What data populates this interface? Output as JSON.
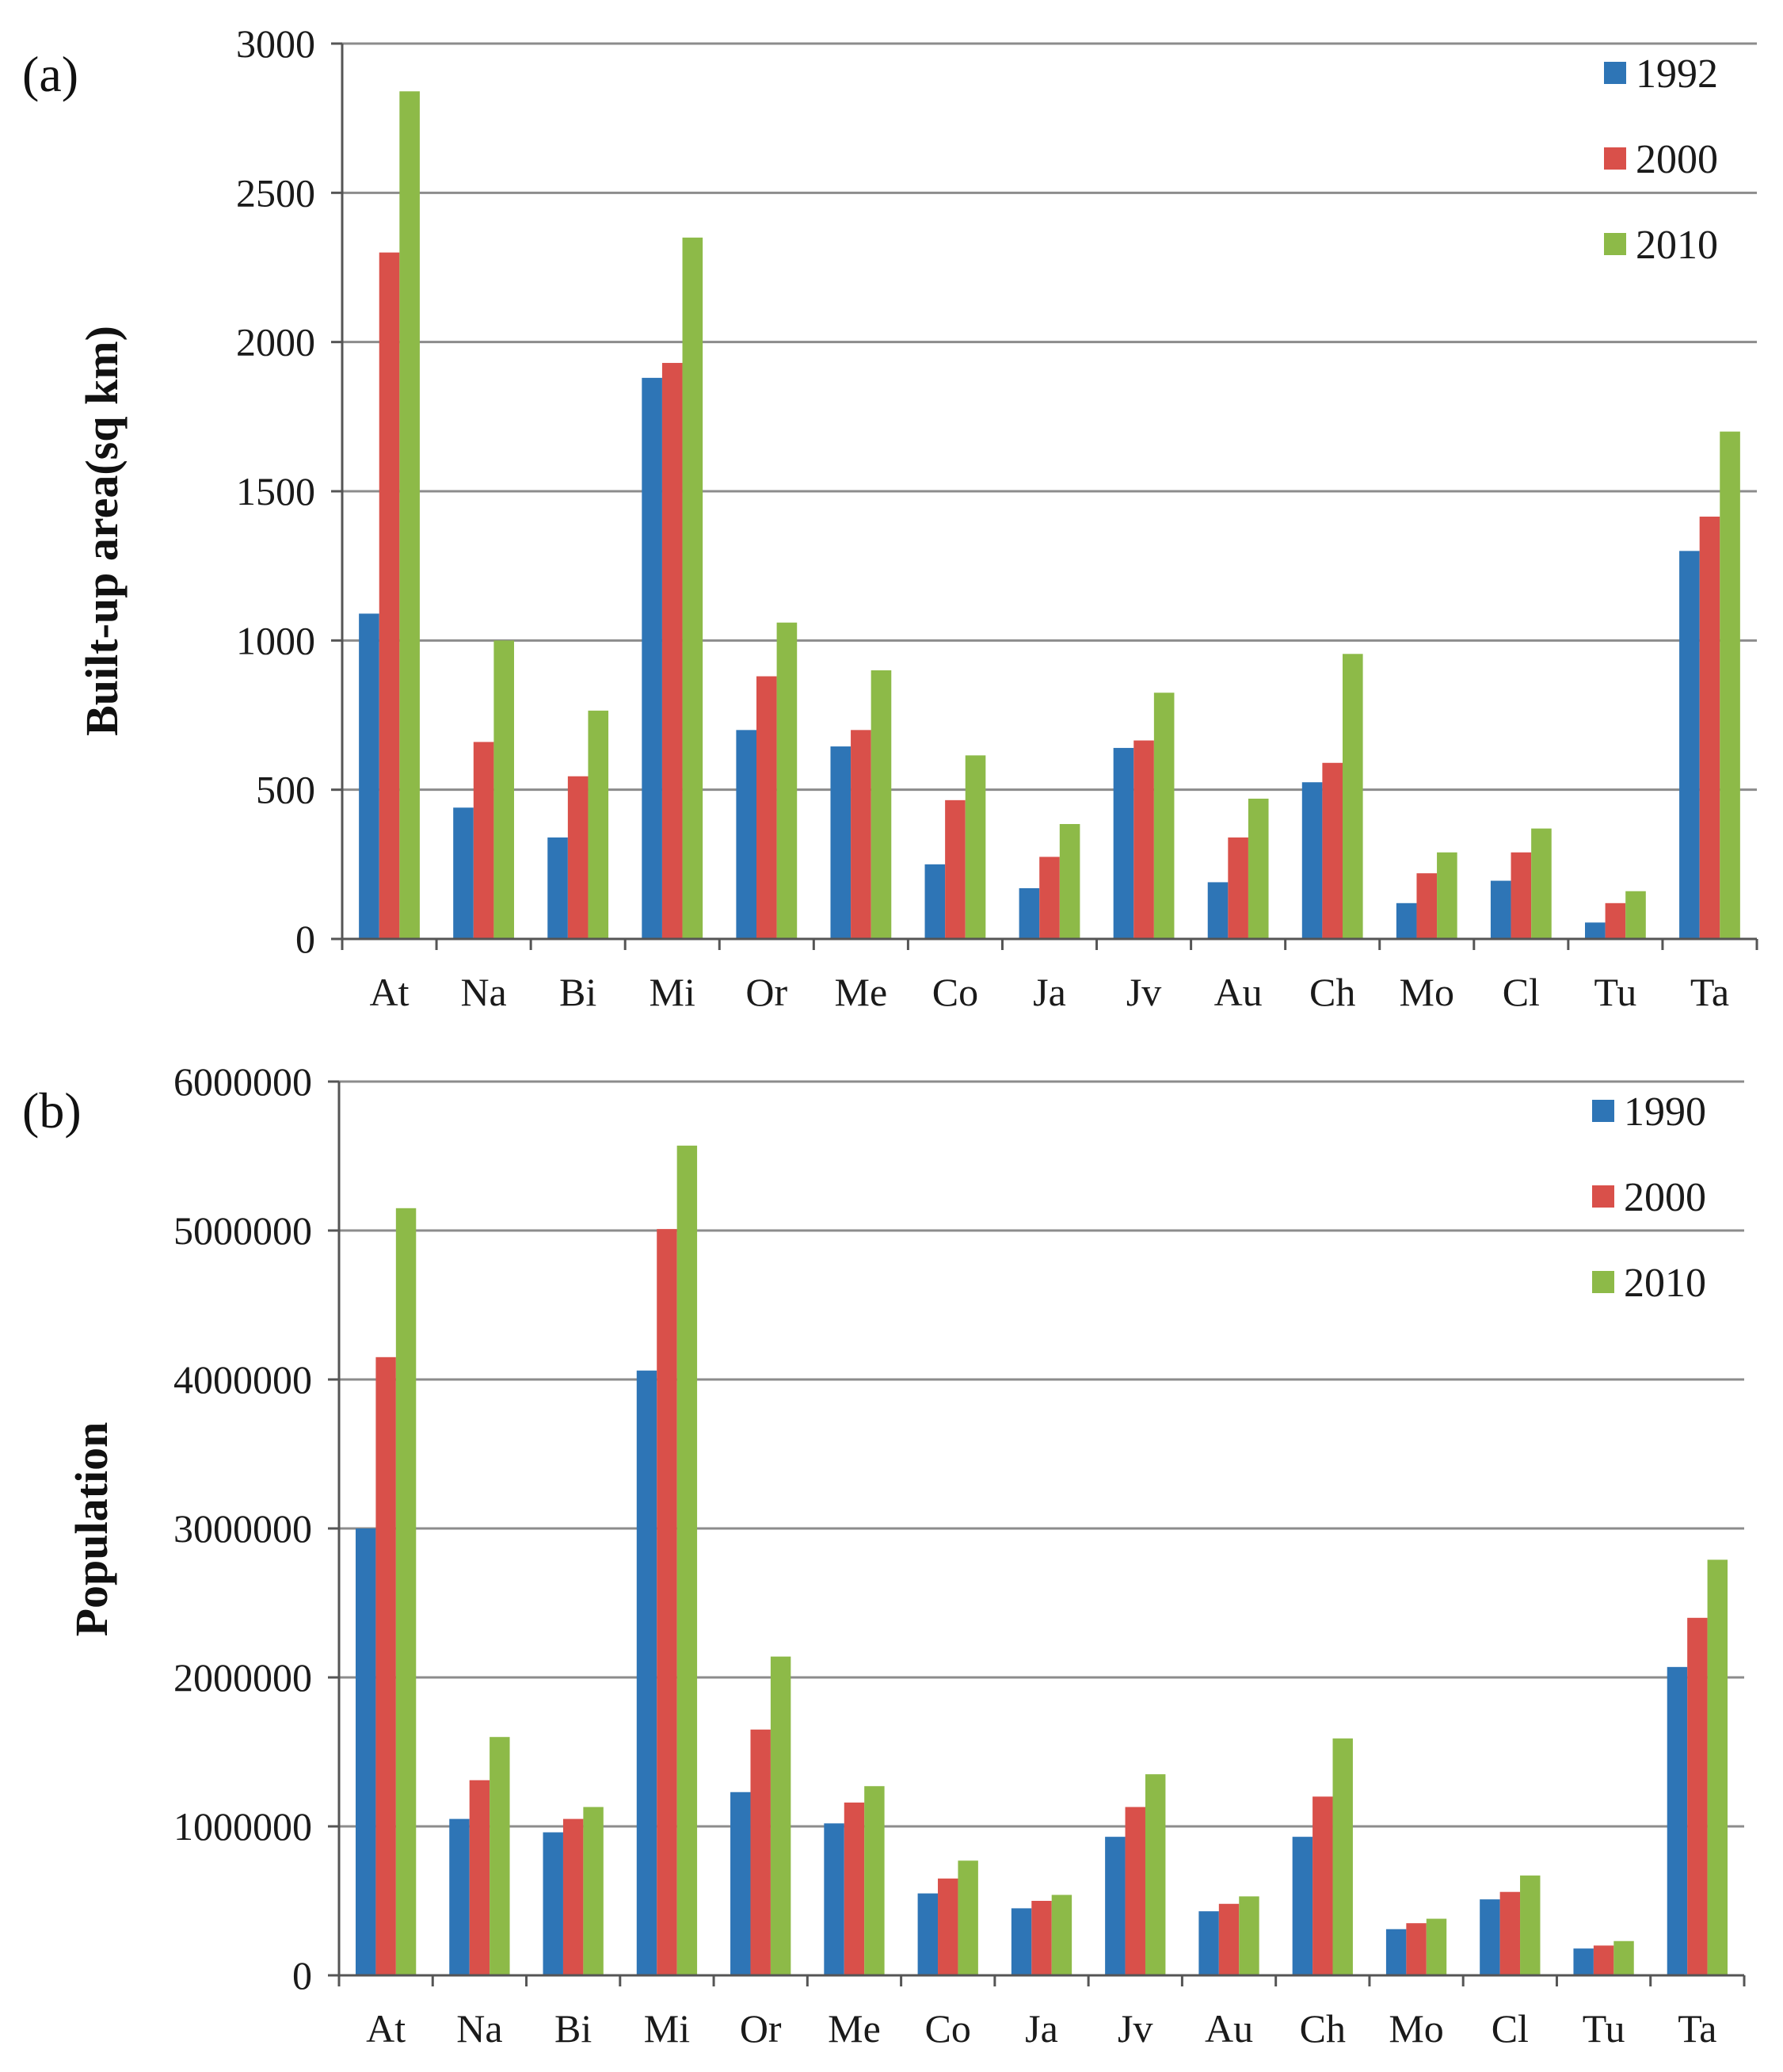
{
  "colors": {
    "blue": "#2E75B6",
    "red": "#D9504A",
    "green": "#8DBA48",
    "grid": "#8c8c8c",
    "axis": "#555555"
  },
  "chart_data": [
    {
      "panel_label": "(a)",
      "type": "bar",
      "ylabel": "Built-up area(sq km)",
      "xlabel": "",
      "ylim": [
        0,
        3000
      ],
      "yticks": [
        0,
        500,
        1000,
        1500,
        2000,
        2500,
        3000
      ],
      "grid": true,
      "legend_position": "top-right",
      "categories": [
        "At",
        "Na",
        "Bi",
        "Mi",
        "Or",
        "Me",
        "Co",
        "Ja",
        "Jv",
        "Au",
        "Ch",
        "Mo",
        "Cl",
        "Tu",
        "Ta"
      ],
      "series": [
        {
          "name": "1992",
          "color": "#2E75B6",
          "values": [
            1090,
            440,
            340,
            1880,
            700,
            645,
            250,
            170,
            640,
            190,
            525,
            120,
            195,
            55,
            1300
          ]
        },
        {
          "name": "2000",
          "color": "#D9504A",
          "values": [
            2300,
            660,
            545,
            1930,
            880,
            700,
            465,
            275,
            665,
            340,
            590,
            220,
            290,
            120,
            1415
          ]
        },
        {
          "name": "2010",
          "color": "#8DBA48",
          "values": [
            2840,
            1000,
            765,
            2350,
            1060,
            900,
            615,
            385,
            825,
            470,
            955,
            290,
            370,
            160,
            1700
          ]
        }
      ]
    },
    {
      "panel_label": "(b)",
      "type": "bar",
      "ylabel": "Population",
      "xlabel": "",
      "ylim": [
        0,
        6000000
      ],
      "yticks": [
        0,
        1000000,
        2000000,
        3000000,
        4000000,
        5000000,
        6000000
      ],
      "grid": true,
      "legend_position": "top-right",
      "categories": [
        "At",
        "Na",
        "Bi",
        "Mi",
        "Or",
        "Me",
        "Co",
        "Ja",
        "Jv",
        "Au",
        "Ch",
        "Mo",
        "Cl",
        "Tu",
        "Ta"
      ],
      "series": [
        {
          "name": "1990",
          "color": "#2E75B6",
          "values": [
            3000000,
            1050000,
            960000,
            4060000,
            1230000,
            1020000,
            550000,
            450000,
            930000,
            430000,
            930000,
            310000,
            510000,
            180000,
            2070000
          ]
        },
        {
          "name": "2000",
          "color": "#D9504A",
          "values": [
            4150000,
            1310000,
            1050000,
            5010000,
            1650000,
            1160000,
            650000,
            500000,
            1130000,
            480000,
            1200000,
            350000,
            560000,
            200000,
            2400000
          ]
        },
        {
          "name": "2010",
          "color": "#8DBA48",
          "values": [
            5150000,
            1600000,
            1130000,
            5570000,
            2140000,
            1270000,
            770000,
            540000,
            1350000,
            530000,
            1590000,
            380000,
            670000,
            230000,
            2790000
          ]
        }
      ]
    }
  ]
}
